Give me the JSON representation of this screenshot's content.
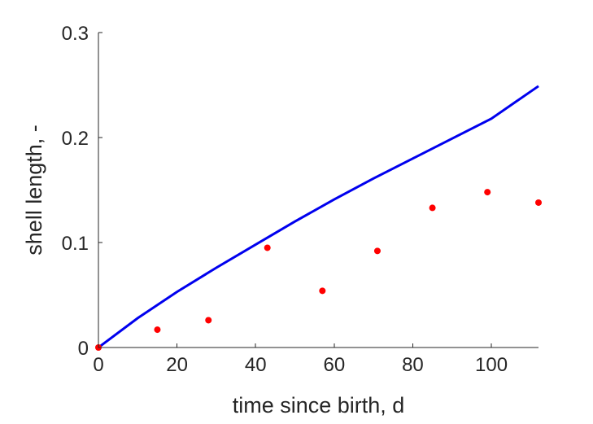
{
  "chart_data": {
    "type": "line",
    "title": "",
    "xlabel": "time since birth, d",
    "ylabel": "shell length, -",
    "xlim": [
      0,
      112
    ],
    "ylim": [
      0,
      0.3
    ],
    "xticks": [
      0,
      20,
      40,
      60,
      80,
      100
    ],
    "yticks": [
      0,
      0.1,
      0.2,
      0.3
    ],
    "xtick_labels": [
      "0",
      "20",
      "40",
      "60",
      "80",
      "100"
    ],
    "ytick_labels": [
      "0",
      "0.1",
      "0.2",
      "0.3"
    ],
    "grid": false,
    "legend": "none",
    "series": [
      {
        "kind": "line",
        "color": "#0000ee",
        "x": [
          0,
          10,
          20,
          30,
          40,
          50,
          60,
          70,
          80,
          90,
          100,
          112
        ],
        "y": [
          0,
          0.028,
          0.053,
          0.076,
          0.098,
          0.12,
          0.141,
          0.161,
          0.18,
          0.199,
          0.218,
          0.249
        ]
      },
      {
        "kind": "scatter",
        "color": "#ff0000",
        "x": [
          0,
          15,
          28,
          43,
          57,
          71,
          85,
          99,
          112
        ],
        "y": [
          0.0,
          0.017,
          0.026,
          0.095,
          0.054,
          0.092,
          0.133,
          0.148,
          0.138
        ]
      }
    ]
  }
}
